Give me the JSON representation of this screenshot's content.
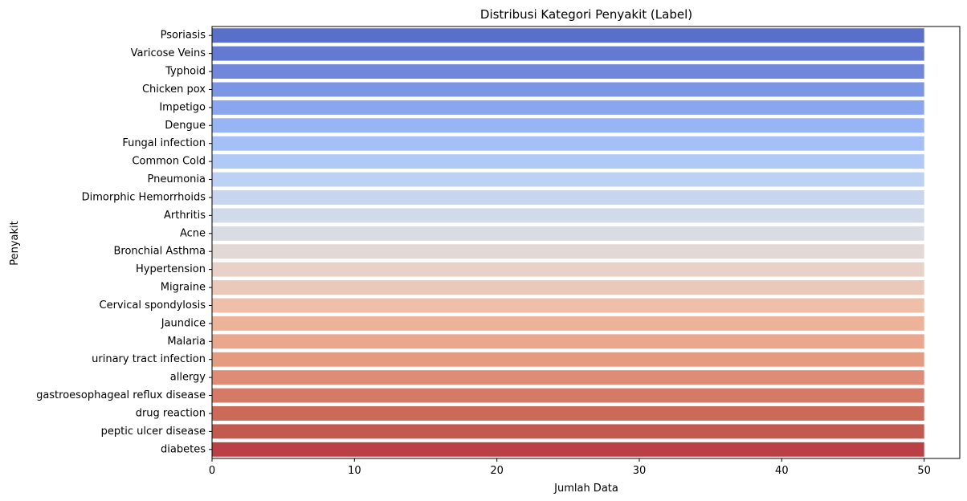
{
  "chart_data": {
    "type": "bar",
    "orientation": "horizontal",
    "title": "Distribusi Kategori Penyakit (Label)",
    "xlabel": "Jumlah Data",
    "ylabel": "Penyakit",
    "xlim": [
      0,
      52.5
    ],
    "xticks": [
      0,
      10,
      20,
      30,
      40,
      50
    ],
    "grid": false,
    "legend": "none",
    "palette": "coolwarm",
    "categories": [
      "Psoriasis",
      "Varicose Veins",
      "Typhoid",
      "Chicken pox",
      "Impetigo",
      "Dengue",
      "Fungal infection",
      "Common Cold",
      "Pneumonia",
      "Dimorphic Hemorrhoids",
      "Arthritis",
      "Acne",
      "Bronchial Asthma",
      "Hypertension",
      "Migraine",
      "Cervical spondylosis",
      "Jaundice",
      "Malaria",
      "urinary tract infection",
      "allergy",
      "gastroesophageal reflux disease",
      "drug reaction",
      "peptic ulcer disease",
      "diabetes"
    ],
    "values": [
      50,
      50,
      50,
      50,
      50,
      50,
      50,
      50,
      50,
      50,
      50,
      50,
      50,
      50,
      50,
      50,
      50,
      50,
      50,
      50,
      50,
      50,
      50,
      50
    ],
    "colors": [
      "#5a6fc9",
      "#6479d0",
      "#7087dc",
      "#7c96e6",
      "#8aa6ee",
      "#97b4f4",
      "#a4c0f7",
      "#b0c9f6",
      "#bcd1f3",
      "#c7d5ef",
      "#d1dae8",
      "#d9dce2",
      "#e2d9d6",
      "#e7d1c8",
      "#ebc9ba",
      "#efbfa9",
      "#edb39a",
      "#e9a88e",
      "#e59b80",
      "#de8c77",
      "#d57a67",
      "#cc6a5a",
      "#c35a4f",
      "#b94145"
    ]
  }
}
